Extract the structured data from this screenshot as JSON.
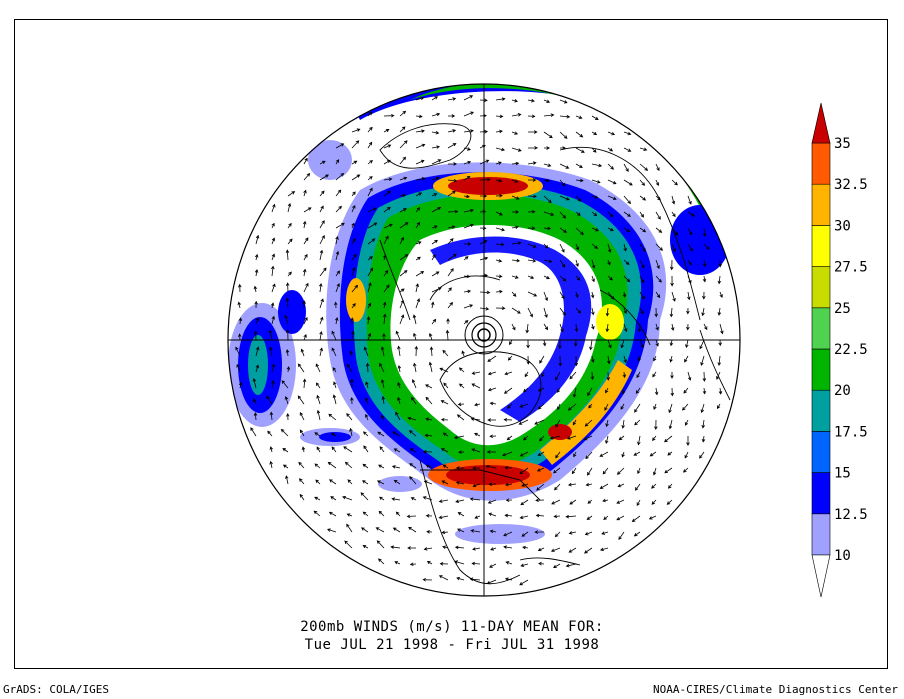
{
  "title_line1": "200mb WINDS (m/s)   11-DAY MEAN FOR:",
  "title_line2": "Tue JUL 21 1998 - Fri JUL 31 1998",
  "footer_left": "GrADS: COLA/IGES",
  "footer_right": "NOAA-CIRES/Climate Diagnostics Center",
  "colorbar": {
    "labels": [
      "10",
      "12.5",
      "15",
      "17.5",
      "20",
      "22.5",
      "25",
      "27.5",
      "30",
      "32.5",
      "35"
    ],
    "colors": [
      "#a0a0ff",
      "#0000ff",
      "#0064ff",
      "#00a0a0",
      "#00b400",
      "#50d250",
      "#c8dc00",
      "#ffff00",
      "#ffb400",
      "#ff5a00",
      "#c80000"
    ]
  },
  "map": {
    "projection": "north-polar-stereographic",
    "field": "200mb wind speed (shaded) with wind vectors",
    "colors": {
      "coast": "#000000",
      "background": "#ffffff"
    }
  }
}
